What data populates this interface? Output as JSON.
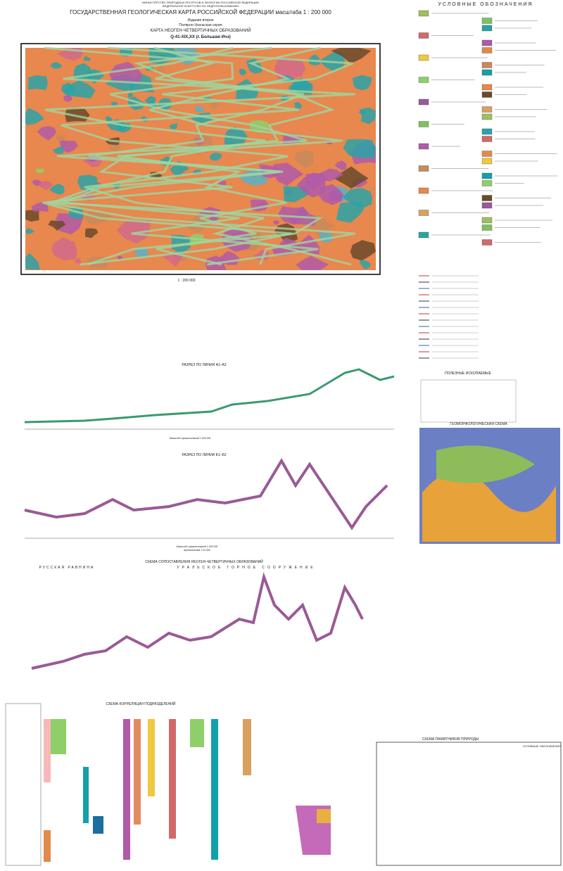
{
  "header": {
    "ministry": "МИНИСТЕРСТВО ПРИРОДНЫХ РЕСУРСОВ И ЭКОЛОГИИ РОССИЙСКОЙ ФЕДЕРАЦИИ",
    "agency": "ФЕДЕРАЛЬНОЕ АГЕНТСТВО ПО НЕДРОПОЛЬЗОВАНИЮ",
    "title": "ГОСУДАРСТВЕННАЯ ГЕОЛОГИЧЕСКАЯ КАРТА РОССИЙСКОЙ ФЕДЕРАЦИИ масштаба 1 : 200 000",
    "edition": "Издание второе",
    "series": "Полярно-Уральская серия",
    "map_title": "КАРТА НЕОГЕН-ЧЕТВЕРТИЧНЫХ ОБРАЗОВАНИЙ",
    "sheet": "Q-41-XIX,XX (г. Большая Ичэ)"
  },
  "legend": {
    "title": "УСЛОВНЫЕ ОБОЗНАЧЕНИЯ",
    "minerals": "ПОЛЕЗНЫЕ ИСКОПАЕМЫЕ"
  },
  "map": {
    "scale": "1 : 200 000"
  },
  "sections": {
    "a": "РАЗРЕЗ ПО ЛИНИИ А1–А2",
    "b": "РАЗРЕЗ ПО ЛИНИИ Б1–Б2",
    "scale_h": "Масштаб горизонтальный 1:200 000",
    "scale_v": "вертикальный 1:10 000",
    "comparison": "СХЕМА СОПОСТАВЛЕНИЯ НЕОГЕН-ЧЕТВЕРТИЧНЫХ ОБРАЗОВАНИЙ",
    "plain": "РУССКАЯ РАВНИНА",
    "urals": "УРАЛЬСКОЕ ГОРНОЕ СООРУЖЕНИЕ"
  },
  "schemes": {
    "geomorph": "ГЕОМОРФОЛОГИЧЕСКАЯ СХЕМА",
    "correlation": "СХЕМА КОРРЕЛЯЦИИ ПОДРАЗДЕЛЕНИЙ",
    "nature": "СХЕМА ПАМЯТНИКОВ ПРИРОДЫ",
    "nature_legend": "УСЛОВНЫЕ ОБОЗНАЧЕНИЯ"
  }
}
